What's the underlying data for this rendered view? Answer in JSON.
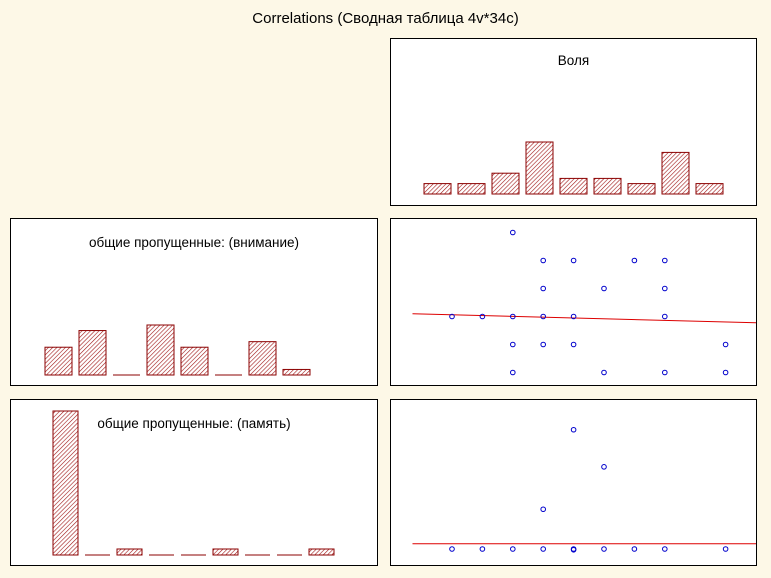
{
  "title": "Correlations (Сводная таблица 4v*34c)",
  "colors": {
    "background": "#fdf8e7",
    "bar_fill": "#a01818",
    "bar_stroke": "#8b0000",
    "point": "#0000cc",
    "fit_line": "#dd0000"
  },
  "chart_data": [
    {
      "type": "bar",
      "title": "Воля",
      "variable": "Воля",
      "values": [
        1,
        1,
        2,
        5,
        1.5,
        1.5,
        1,
        4,
        1
      ],
      "ylim": [
        0,
        10
      ]
    },
    {
      "type": "bar",
      "title": "общие пропущенные: (внимание)",
      "variable": "общие пропущенные: (внимание)",
      "values": [
        2.5,
        4,
        0,
        4.5,
        2.5,
        0,
        3,
        0.5
      ],
      "ylim": [
        0,
        10
      ]
    },
    {
      "type": "bar",
      "title": "общие пропущенные: (память)",
      "variable": "общие пропущенные: (память)",
      "values": [
        24,
        0,
        1,
        0,
        0,
        1,
        0,
        0,
        1
      ],
      "ylim": [
        0,
        30
      ]
    },
    {
      "type": "scatter",
      "x_variable": "Воля",
      "y_variable": "общие пропущенные: (внимание)",
      "xlim": [
        0,
        12
      ],
      "ylim": [
        0,
        6
      ],
      "points": [
        [
          3,
          5
        ],
        [
          4,
          4
        ],
        [
          5,
          4
        ],
        [
          7,
          4
        ],
        [
          8,
          4
        ],
        [
          4,
          3
        ],
        [
          6,
          3
        ],
        [
          8,
          3
        ],
        [
          1,
          2
        ],
        [
          2,
          2
        ],
        [
          3,
          2
        ],
        [
          4,
          2
        ],
        [
          5,
          2
        ],
        [
          8,
          2
        ],
        [
          3,
          1
        ],
        [
          4,
          1
        ],
        [
          5,
          1
        ],
        [
          10,
          1
        ],
        [
          3,
          0
        ],
        [
          6,
          0
        ],
        [
          8,
          0
        ],
        [
          10,
          0
        ]
      ],
      "fit_line": {
        "x": [
          -0.3,
          11.9
        ],
        "y": [
          2.1,
          1.75
        ]
      }
    },
    {
      "type": "scatter",
      "x_variable": "Воля",
      "y_variable": "общие пропущенные: (память)",
      "xlim": [
        0,
        12
      ],
      "ylim": [
        0,
        5
      ],
      "points": [
        [
          5,
          4.5
        ],
        [
          6,
          3.1
        ],
        [
          4,
          1.5
        ],
        [
          1,
          0
        ],
        [
          2,
          0
        ],
        [
          3,
          0
        ],
        [
          4,
          0
        ],
        [
          5,
          0
        ],
        [
          5,
          -0.03
        ],
        [
          6,
          0
        ],
        [
          7,
          0
        ],
        [
          8,
          0
        ],
        [
          10,
          0
        ]
      ],
      "fit_line": {
        "x": [
          -0.3,
          11.9
        ],
        "y": [
          0.2,
          0.2
        ]
      }
    }
  ]
}
